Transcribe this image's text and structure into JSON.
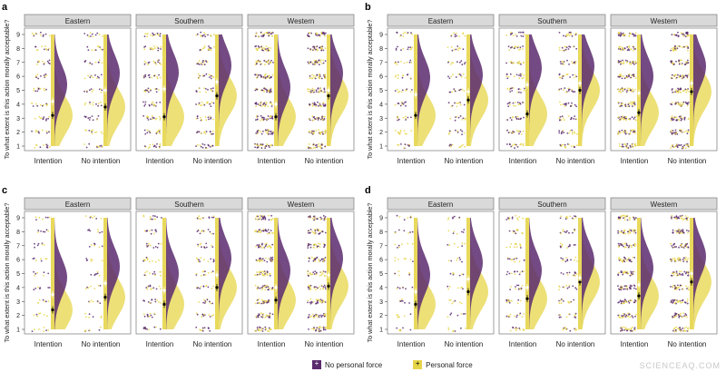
{
  "colors": {
    "no_personal_force": "#5b2a6e",
    "personal_force": "#e6d54a",
    "personal_force_light": "#f3ea98",
    "strip_header": "#d9d9d9",
    "panel_border": "#888888"
  },
  "legend": {
    "no_personal_force": "No personal force",
    "personal_force": "Personal force",
    "no_personal_force_symbol": "+",
    "personal_force_symbol": "+"
  },
  "watermark": "SCIENCEAQ.COM",
  "chart_data": [
    {
      "type": "raincloud",
      "label": "a",
      "ylabel": "To what extent is this action morally acceptable?",
      "ylim": [
        1,
        9
      ],
      "yticks": [
        "1",
        "2",
        "3",
        "4",
        "5",
        "6",
        "7",
        "8",
        "9"
      ],
      "categories": [
        "Intention",
        "No intention"
      ],
      "facets": [
        {
          "name": "Eastern",
          "density": 0.25,
          "points": {
            "no_personal_force": [
              4.2,
              5.0
            ],
            "personal_force": [
              3.2,
              3.8
            ]
          }
        },
        {
          "name": "Southern",
          "density": 0.45,
          "points": {
            "no_personal_force": [
              5.1,
              5.6
            ],
            "personal_force": [
              3.1,
              4.6
            ]
          }
        },
        {
          "name": "Western",
          "density": 1.0,
          "points": {
            "no_personal_force": [
              4.0,
              5.0
            ],
            "personal_force": [
              3.1,
              4.6
            ]
          }
        }
      ]
    },
    {
      "type": "raincloud",
      "label": "b",
      "ylabel": "To what extent is this action morally acceptable?",
      "ylim": [
        1,
        9
      ],
      "yticks": [
        "1",
        "2",
        "3",
        "4",
        "5",
        "6",
        "7",
        "8",
        "9"
      ],
      "categories": [
        "Intention",
        "No intention"
      ],
      "facets": [
        {
          "name": "Eastern",
          "density": 0.25,
          "points": {
            "no_personal_force": [
              4.7,
              4.9
            ],
            "personal_force": [
              3.2,
              4.3
            ]
          }
        },
        {
          "name": "Southern",
          "density": 0.45,
          "points": {
            "no_personal_force": [
              5.4,
              5.5
            ],
            "personal_force": [
              3.3,
              5.0
            ]
          }
        },
        {
          "name": "Western",
          "density": 1.0,
          "points": {
            "no_personal_force": [
              4.8,
              5.5
            ],
            "personal_force": [
              3.4,
              4.9
            ]
          }
        }
      ]
    },
    {
      "type": "raincloud",
      "label": "c",
      "ylabel": "To what extent is this action morally acceptable?",
      "ylim": [
        1,
        9
      ],
      "yticks": [
        "1",
        "2",
        "3",
        "4",
        "5",
        "6",
        "7",
        "8",
        "9"
      ],
      "categories": [
        "Intention",
        "No intention"
      ],
      "facets": [
        {
          "name": "Eastern",
          "density": 0.12,
          "points": {
            "no_personal_force": [
              3.5,
              4.3
            ],
            "personal_force": [
              2.4,
              3.3
            ]
          }
        },
        {
          "name": "Southern",
          "density": 0.3,
          "points": {
            "no_personal_force": [
              3.8,
              4.9
            ],
            "personal_force": [
              2.8,
              4.0
            ]
          }
        },
        {
          "name": "Western",
          "density": 0.9,
          "points": {
            "no_personal_force": [
              4.0,
              4.9
            ],
            "personal_force": [
              3.1,
              4.1
            ]
          }
        }
      ]
    },
    {
      "type": "raincloud",
      "label": "d",
      "ylabel": "To what extent is this action morally acceptable?",
      "ylim": [
        1,
        9
      ],
      "yticks": [
        "1",
        "2",
        "3",
        "4",
        "5",
        "6",
        "7",
        "8",
        "9"
      ],
      "categories": [
        "Intention",
        "No intention"
      ],
      "facets": [
        {
          "name": "Eastern",
          "density": 0.12,
          "points": {
            "no_personal_force": [
              3.7,
              4.6
            ],
            "personal_force": [
              2.8,
              3.7
            ]
          }
        },
        {
          "name": "Southern",
          "density": 0.3,
          "points": {
            "no_personal_force": [
              4.0,
              4.7
            ],
            "personal_force": [
              3.2,
              4.4
            ]
          }
        },
        {
          "name": "Western",
          "density": 0.95,
          "points": {
            "no_personal_force": [
              4.2,
              5.0
            ],
            "personal_force": [
              3.4,
              4.4
            ]
          }
        }
      ]
    }
  ]
}
